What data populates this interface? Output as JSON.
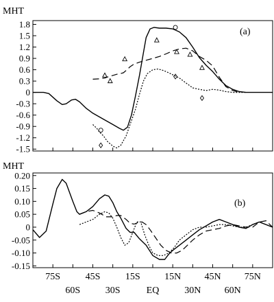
{
  "chart_data": [
    {
      "type": "line",
      "panel_label": "(a)",
      "ylabel": "MHT",
      "ylim": [
        -1.5,
        1.8
      ],
      "yticks": [
        1.8,
        1.5,
        1.2,
        0.9,
        0.6,
        0.3,
        0,
        -0.3,
        -0.6,
        -0.9,
        -1.2,
        -1.5
      ],
      "ytick_labels": [
        "1.8",
        "1.5",
        "1.2",
        "0.9",
        "0.6",
        "0.3",
        "0",
        "-0.3",
        "-0.6",
        "-0.9",
        "-1.2",
        "-1.5"
      ],
      "xlim": [
        -90,
        90
      ],
      "series": [
        {
          "style": "solid",
          "points": [
            [
              -90,
              0
            ],
            [
              -82,
              0
            ],
            [
              -78,
              -0.03
            ],
            [
              -72,
              -0.22
            ],
            [
              -68,
              -0.32
            ],
            [
              -65,
              -0.3
            ],
            [
              -61,
              -0.2
            ],
            [
              -58,
              -0.18
            ],
            [
              -55,
              -0.25
            ],
            [
              -50,
              -0.42
            ],
            [
              -45,
              -0.55
            ],
            [
              -40,
              -0.65
            ],
            [
              -35,
              -0.75
            ],
            [
              -30,
              -0.85
            ],
            [
              -25,
              -0.95
            ],
            [
              -22,
              -1.0
            ],
            [
              -19,
              -0.92
            ],
            [
              -16,
              -0.6
            ],
            [
              -13,
              -0.1
            ],
            [
              -10,
              0.45
            ],
            [
              -7,
              1.05
            ],
            [
              -5,
              1.45
            ],
            [
              -2,
              1.68
            ],
            [
              1,
              1.72
            ],
            [
              5,
              1.7
            ],
            [
              10,
              1.7
            ],
            [
              15,
              1.68
            ],
            [
              20,
              1.6
            ],
            [
              25,
              1.45
            ],
            [
              30,
              1.2
            ],
            [
              35,
              0.92
            ],
            [
              40,
              0.72
            ],
            [
              45,
              0.55
            ],
            [
              50,
              0.35
            ],
            [
              55,
              0.18
            ],
            [
              60,
              0.08
            ],
            [
              65,
              0.02
            ],
            [
              70,
              0
            ],
            [
              75,
              0
            ],
            [
              80,
              0
            ],
            [
              85,
              0
            ],
            [
              90,
              0
            ]
          ]
        },
        {
          "style": "dashed",
          "points": [
            [
              -45,
              0.35
            ],
            [
              -40,
              0.36
            ],
            [
              -36,
              0.38
            ],
            [
              -33,
              0.42
            ],
            [
              -30,
              0.45
            ],
            [
              -27,
              0.48
            ],
            [
              -24,
              0.5
            ],
            [
              -22,
              0.52
            ],
            [
              -20,
              0.58
            ],
            [
              -17,
              0.68
            ],
            [
              -14,
              0.75
            ],
            [
              -10,
              0.8
            ],
            [
              -5,
              0.85
            ],
            [
              0,
              0.9
            ],
            [
              5,
              0.95
            ],
            [
              10,
              1.02
            ],
            [
              15,
              1.1
            ],
            [
              20,
              1.15
            ],
            [
              25,
              1.17
            ],
            [
              30,
              1.1
            ],
            [
              35,
              0.95
            ],
            [
              40,
              0.85
            ],
            [
              45,
              0.7
            ],
            [
              50,
              0.4
            ],
            [
              55,
              0.15
            ],
            [
              60,
              0.05
            ],
            [
              65,
              0
            ]
          ]
        },
        {
          "style": "dotted",
          "points": [
            [
              -45,
              -0.85
            ],
            [
              -42,
              -0.95
            ],
            [
              -40,
              -1.05
            ],
            [
              -37,
              -1.15
            ],
            [
              -34,
              -1.3
            ],
            [
              -30,
              -1.42
            ],
            [
              -27,
              -1.47
            ],
            [
              -24,
              -1.4
            ],
            [
              -20,
              -1.15
            ],
            [
              -17,
              -0.85
            ],
            [
              -13,
              -0.45
            ],
            [
              -10,
              -0.05
            ],
            [
              -7,
              0.3
            ],
            [
              -4,
              0.5
            ],
            [
              0,
              0.6
            ],
            [
              4,
              0.62
            ],
            [
              8,
              0.58
            ],
            [
              12,
              0.52
            ],
            [
              16,
              0.45
            ],
            [
              20,
              0.38
            ],
            [
              25,
              0.25
            ],
            [
              30,
              0.12
            ],
            [
              35,
              0.08
            ],
            [
              40,
              0.05
            ],
            [
              45,
              0.08
            ],
            [
              50,
              0.06
            ],
            [
              55,
              0.02
            ],
            [
              60,
              0
            ],
            [
              65,
              0
            ],
            [
              70,
              0
            ]
          ]
        },
        {
          "style": "circle",
          "points": [
            [
              -39,
              -1.0
            ],
            [
              17,
              1.72
            ]
          ]
        },
        {
          "style": "triangle",
          "points": [
            [
              -36,
              0.45
            ],
            [
              -32,
              0.3
            ],
            [
              -21,
              0.88
            ],
            [
              3,
              1.38
            ],
            [
              18,
              1.07
            ],
            [
              28,
              1.0
            ],
            [
              37,
              0.65
            ]
          ]
        },
        {
          "style": "diamond",
          "points": [
            [
              -39,
              -1.4
            ],
            [
              17,
              0.42
            ],
            [
              37,
              -0.15
            ]
          ]
        }
      ]
    },
    {
      "type": "line",
      "panel_label": "(b)",
      "ylabel": "MHT",
      "ylim": [
        -0.15,
        0.2
      ],
      "yticks": [
        0.2,
        0.15,
        0.1,
        0.05,
        0,
        -0.05,
        -0.1,
        -0.15
      ],
      "ytick_labels": [
        "0.20",
        "0.15",
        "0.10",
        "0.05",
        "0",
        "-0.05",
        "-0.10",
        "-0.15"
      ],
      "xlim": [
        -90,
        90
      ],
      "series": [
        {
          "style": "solid",
          "points": [
            [
              -90,
              -0.01
            ],
            [
              -85,
              -0.04
            ],
            [
              -80,
              -0.015
            ],
            [
              -75,
              0.09
            ],
            [
              -72,
              0.15
            ],
            [
              -68,
              0.185
            ],
            [
              -65,
              0.17
            ],
            [
              -60,
              0.1
            ],
            [
              -57,
              0.06
            ],
            [
              -55,
              0.05
            ],
            [
              -50,
              0.06
            ],
            [
              -45,
              0.08
            ],
            [
              -40,
              0.11
            ],
            [
              -36,
              0.125
            ],
            [
              -33,
              0.12
            ],
            [
              -30,
              0.095
            ],
            [
              -27,
              0.06
            ],
            [
              -24,
              0.035
            ],
            [
              -20,
              -0.005
            ],
            [
              -17,
              -0.02
            ],
            [
              -14,
              -0.02
            ],
            [
              -10,
              -0.045
            ],
            [
              -5,
              -0.07
            ],
            [
              0,
              -0.11
            ],
            [
              5,
              -0.125
            ],
            [
              9,
              -0.125
            ],
            [
              12,
              -0.105
            ],
            [
              15,
              -0.09
            ],
            [
              20,
              -0.07
            ],
            [
              25,
              -0.05
            ],
            [
              30,
              -0.03
            ],
            [
              35,
              -0.01
            ],
            [
              40,
              0.005
            ],
            [
              45,
              0.02
            ],
            [
              50,
              0.03
            ],
            [
              55,
              0.02
            ],
            [
              60,
              0.01
            ],
            [
              65,
              0.0
            ],
            [
              70,
              -0.005
            ],
            [
              75,
              0.01
            ],
            [
              80,
              0.02
            ],
            [
              90,
              0.0
            ]
          ]
        },
        {
          "style": "dashed",
          "points": [
            [
              -55,
              0.05
            ],
            [
              -50,
              0.06
            ],
            [
              -45,
              0.065
            ],
            [
              -40,
              0.055
            ],
            [
              -35,
              0.04
            ],
            [
              -30,
              0.04
            ],
            [
              -27,
              0.045
            ],
            [
              -24,
              0.045
            ],
            [
              -20,
              0.03
            ],
            [
              -17,
              0.015
            ],
            [
              -14,
              0.012
            ],
            [
              -11,
              0.018
            ],
            [
              -8,
              0.02
            ],
            [
              -5,
              0.01
            ],
            [
              -2,
              -0.01
            ],
            [
              2,
              -0.04
            ],
            [
              6,
              -0.07
            ],
            [
              10,
              -0.09
            ],
            [
              14,
              -0.1
            ],
            [
              18,
              -0.1
            ],
            [
              22,
              -0.09
            ],
            [
              26,
              -0.07
            ],
            [
              30,
              -0.05
            ],
            [
              35,
              -0.03
            ],
            [
              40,
              -0.015
            ],
            [
              45,
              -0.01
            ],
            [
              50,
              -0.005
            ],
            [
              55,
              0.005
            ],
            [
              60,
              0.01
            ],
            [
              65,
              0.005
            ],
            [
              70,
              0.0
            ],
            [
              75,
              0.0
            ],
            [
              80,
              0.02
            ],
            [
              85,
              0.025
            ],
            [
              90,
              0.0
            ]
          ]
        },
        {
          "style": "dotted",
          "points": [
            [
              -55,
              0.01
            ],
            [
              -50,
              0.02
            ],
            [
              -45,
              0.03
            ],
            [
              -40,
              0.05
            ],
            [
              -36,
              0.06
            ],
            [
              -33,
              0.055
            ],
            [
              -30,
              0.035
            ],
            [
              -27,
              0.0
            ],
            [
              -24,
              -0.04
            ],
            [
              -21,
              -0.07
            ],
            [
              -18,
              -0.06
            ],
            [
              -15,
              -0.02
            ],
            [
              -12,
              0.02
            ],
            [
              -9,
              0.02
            ],
            [
              -6,
              -0.03
            ],
            [
              -3,
              -0.07
            ],
            [
              0,
              -0.1
            ],
            [
              4,
              -0.11
            ],
            [
              8,
              -0.11
            ],
            [
              12,
              -0.1
            ],
            [
              16,
              -0.08
            ],
            [
              20,
              -0.05
            ],
            [
              25,
              -0.03
            ],
            [
              30,
              -0.01
            ],
            [
              35,
              0.0
            ],
            [
              40,
              0.0
            ],
            [
              45,
              0.005
            ],
            [
              50,
              0.01
            ],
            [
              55,
              0.01
            ],
            [
              60,
              0.005
            ],
            [
              65,
              0.0
            ],
            [
              70,
              0.0
            ],
            [
              80,
              0.02
            ],
            [
              90,
              0.0
            ]
          ]
        }
      ]
    }
  ],
  "x_axis": {
    "ticks": [
      -75,
      -60,
      -45,
      -30,
      -15,
      0,
      15,
      30,
      45,
      60,
      75
    ],
    "labels_row1": [
      {
        "value": -75,
        "text": "75S"
      },
      {
        "value": -45,
        "text": "45S"
      },
      {
        "value": -15,
        "text": "15S"
      },
      {
        "value": 15,
        "text": "15N"
      },
      {
        "value": 45,
        "text": "45N"
      },
      {
        "value": 75,
        "text": "75N"
      }
    ],
    "labels_row2": [
      {
        "value": -60,
        "text": "60S"
      },
      {
        "value": -30,
        "text": "30S"
      },
      {
        "value": 0,
        "text": "EQ"
      },
      {
        "value": 30,
        "text": "30N"
      },
      {
        "value": 60,
        "text": "60N"
      }
    ]
  }
}
